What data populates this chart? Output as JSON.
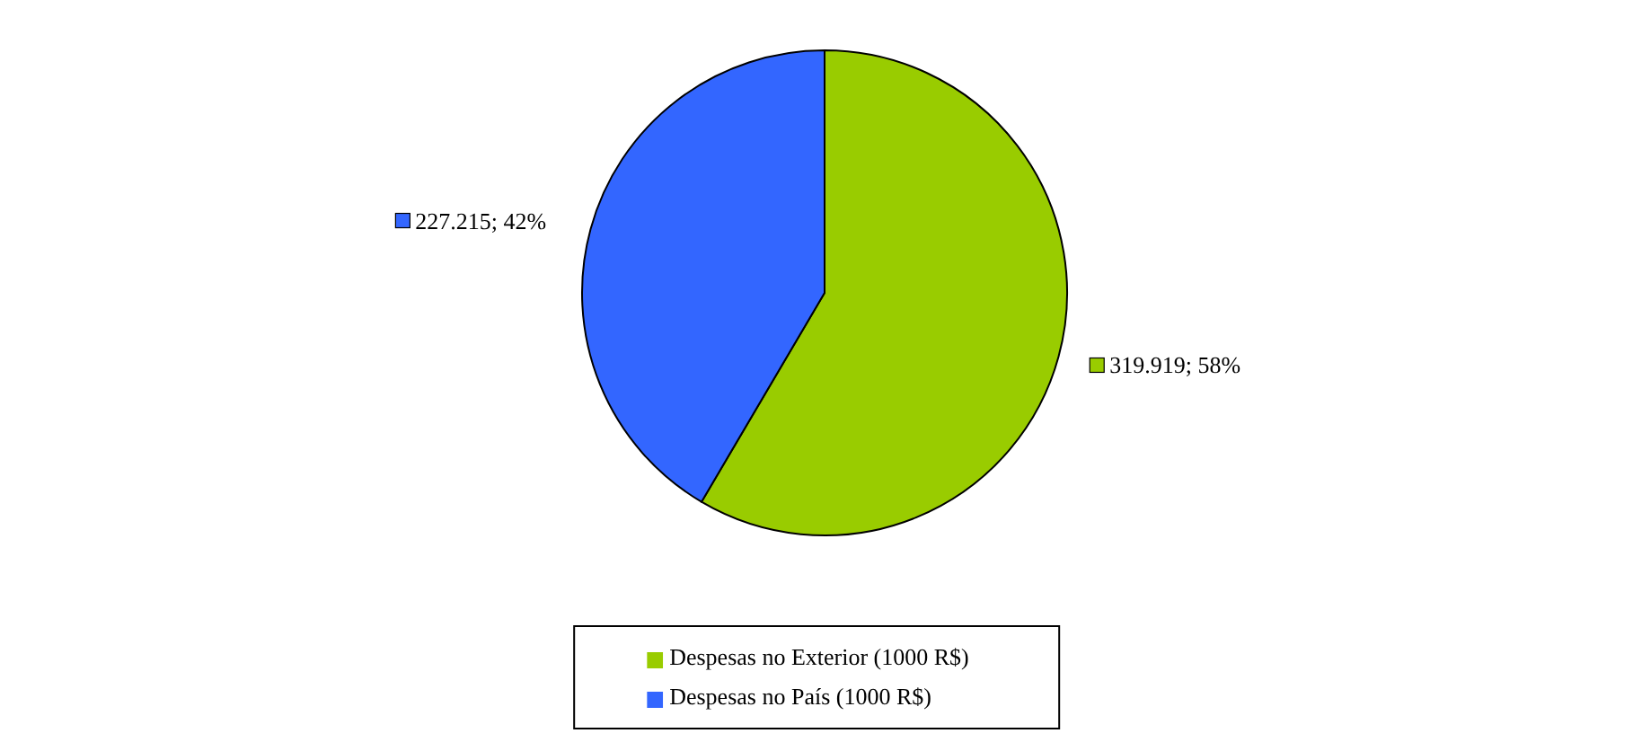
{
  "chart_data": {
    "type": "pie",
    "categories": [
      "Despesas no Exterior (1000 R$)",
      "Despesas no País (1000 R$)"
    ],
    "values": [
      319.919,
      227.215
    ],
    "colors": [
      "#99cc00",
      "#3366ff"
    ],
    "value_labels": [
      "319.919; 58%",
      "227.215; 42%"
    ],
    "legend": "bottom"
  }
}
